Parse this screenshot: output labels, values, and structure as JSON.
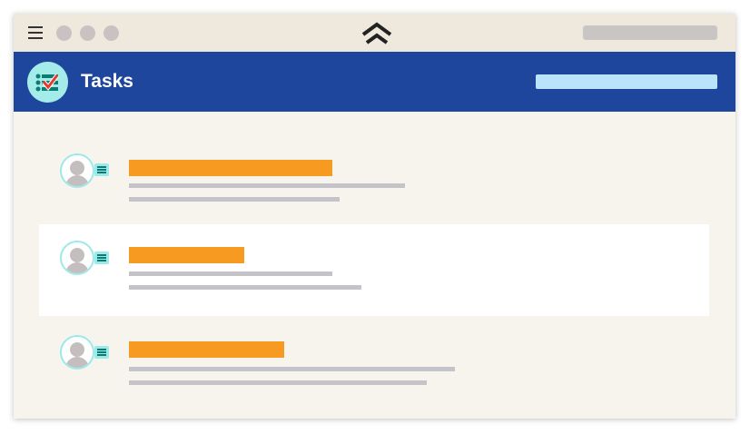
{
  "app": {
    "title": "Tasks",
    "icon": "task-checklist-icon",
    "brand_icon": "chevron-up-logo-icon"
  },
  "colors": {
    "header": "#1e469c",
    "accent": "#f79a22",
    "titlebar": "#efe8dd"
  },
  "tasks": [
    {
      "selected": false
    },
    {
      "selected": true
    },
    {
      "selected": false
    }
  ]
}
